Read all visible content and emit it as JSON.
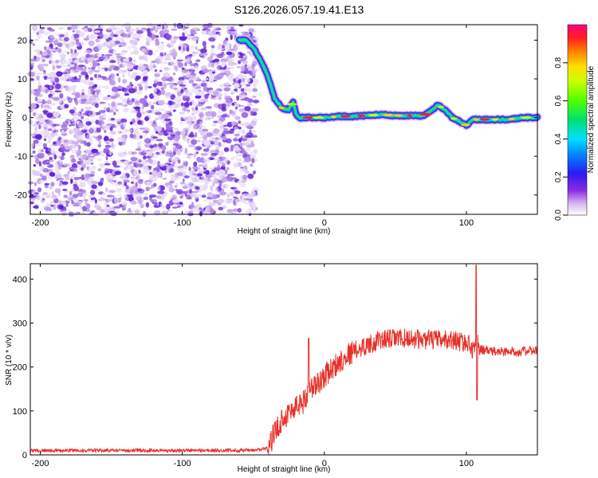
{
  "title": "S126.2026.057.19.41.E13",
  "chart_data": [
    {
      "type": "heatmap",
      "title": "S126.2026.057.19.41.E13",
      "xlabel": "Height of straight line (km)",
      "ylabel": "Frequency (Hz)",
      "xlim": [
        -207,
        150
      ],
      "ylim": [
        -25,
        24
      ],
      "xticks": [
        -200,
        -100,
        0,
        100
      ],
      "yticks": [
        -20,
        -10,
        0,
        10,
        20
      ],
      "noise_region": {
        "x_start": -207,
        "x_end": -48,
        "description_free": true
      },
      "ridge": {
        "x": [
          -60,
          -55,
          -50,
          -45,
          -40,
          -35,
          -30,
          -25,
          -22,
          -20,
          -18,
          -15,
          -10,
          0,
          10,
          20,
          30,
          40,
          50,
          60,
          70,
          76,
          80,
          85,
          90,
          95,
          100,
          105,
          110,
          120,
          130,
          140,
          150
        ],
        "y": [
          20,
          20,
          18,
          15,
          11,
          5,
          2.5,
          2,
          4,
          1,
          0,
          0,
          0,
          0,
          0.3,
          0.3,
          0.5,
          0.8,
          0.5,
          0.5,
          0.5,
          2,
          3.2,
          2,
          0,
          -1,
          -2,
          -0.5,
          -0.5,
          -0.5,
          -0.5,
          0,
          0
        ]
      },
      "colorbar": {
        "label": "Normalized spectral amplitude",
        "range": [
          0,
          1
        ],
        "ticks": [
          0.0,
          0.2,
          0.4,
          0.6,
          0.8
        ]
      }
    },
    {
      "type": "line",
      "xlabel": "Height of straight line (km)",
      "ylabel": "SNR (10 * v/v)",
      "xlim": [
        -207,
        150
      ],
      "ylim": [
        0,
        435
      ],
      "xticks": [
        -200,
        -100,
        0,
        100
      ],
      "yticks": [
        0,
        100,
        200,
        300,
        400
      ],
      "series": [
        {
          "name": "SNR",
          "color": "#e8302a",
          "x": [
            -207,
            -150,
            -100,
            -50,
            -40,
            -35,
            -30,
            -25,
            -20,
            -15,
            -10,
            -5,
            0,
            5,
            10,
            15,
            20,
            30,
            40,
            50,
            60,
            70,
            80,
            90,
            100,
            105,
            107,
            110,
            120,
            130,
            140,
            150
          ],
          "y": [
            10,
            10,
            10,
            10,
            15,
            50,
            80,
            95,
            110,
            120,
            150,
            160,
            180,
            195,
            210,
            225,
            235,
            250,
            262,
            265,
            265,
            262,
            262,
            262,
            255,
            240,
            260,
            240,
            235,
            235,
            235,
            238
          ]
        }
      ],
      "spikes": [
        {
          "x": -11,
          "y": 265
        },
        {
          "x": 107,
          "y": 432
        },
        {
          "x": 107.5,
          "y": 125
        }
      ]
    }
  ]
}
